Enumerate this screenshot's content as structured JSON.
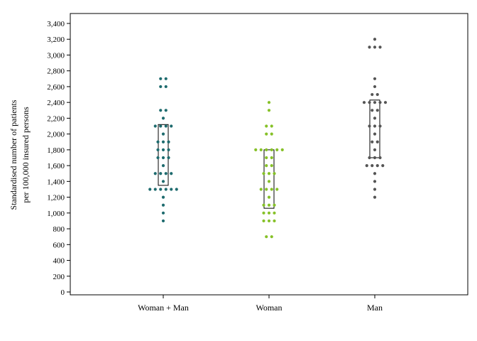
{
  "chart_data": {
    "type": "scatter",
    "subtype": "dot-strip-plot-with-iqr-boxes",
    "title": "",
    "ylabel_line1": "Standardised number of patients",
    "ylabel_line2": "per 100,000 insured persons",
    "xlabel": "",
    "categories": [
      "Woman + Man",
      "Woman",
      "Man"
    ],
    "ylim": [
      0,
      3400
    ],
    "yticks": [
      "0",
      "200",
      "400",
      "600",
      "800",
      "1,000",
      "1,200",
      "1,400",
      "1,600",
      "1,800",
      "2,000",
      "2,200",
      "2,400",
      "2,600",
      "2,800",
      "3,000",
      "3,200",
      "3,400"
    ],
    "ytick_values": [
      0,
      200,
      400,
      600,
      800,
      1000,
      1200,
      1400,
      1600,
      1800,
      2000,
      2200,
      2400,
      2600,
      2800,
      3000,
      3200,
      3400
    ],
    "grid": false,
    "legend": "none",
    "series": [
      {
        "category": "Woman + Man",
        "color": "#1e6b6e",
        "box": {
          "q1": 1350,
          "q3": 2120
        },
        "points": [
          900,
          1000,
          1100,
          1200,
          1300,
          1300,
          1300,
          1300,
          1300,
          1300,
          1400,
          1500,
          1500,
          1500,
          1500,
          1600,
          1700,
          1700,
          1700,
          1800,
          1800,
          1800,
          1900,
          1900,
          1900,
          2000,
          2100,
          2100,
          2100,
          2100,
          2200,
          2300,
          2300,
          2600,
          2600,
          2700,
          2700
        ]
      },
      {
        "category": "Woman",
        "color": "#86c128",
        "box": {
          "q1": 1060,
          "q3": 1800
        },
        "points": [
          700,
          700,
          900,
          900,
          900,
          1000,
          1000,
          1000,
          1100,
          1100,
          1100,
          1200,
          1300,
          1300,
          1300,
          1300,
          1400,
          1500,
          1500,
          1500,
          1600,
          1600,
          1700,
          1700,
          1800,
          1800,
          1800,
          1800,
          1800,
          1800,
          2000,
          2000,
          2100,
          2100,
          2300,
          2400
        ]
      },
      {
        "category": "Man",
        "color": "#555555",
        "box": {
          "q1": 1700,
          "q3": 2430
        },
        "points": [
          1200,
          1300,
          1400,
          1500,
          1600,
          1600,
          1600,
          1600,
          1700,
          1700,
          1700,
          1800,
          1900,
          1900,
          2000,
          2100,
          2100,
          2100,
          2200,
          2300,
          2300,
          2400,
          2400,
          2400,
          2400,
          2400,
          2500,
          2500,
          2600,
          2700,
          3100,
          3100,
          3100,
          3200
        ]
      }
    ]
  }
}
